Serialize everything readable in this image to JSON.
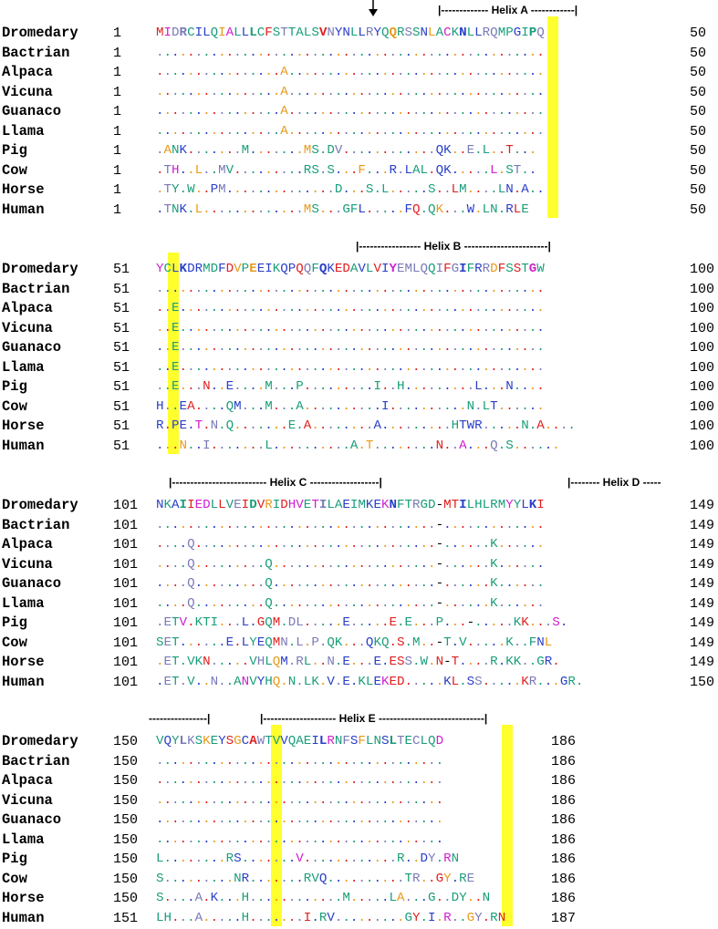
{
  "annotations": {
    "helix_a": "|------------- Helix A ------------|",
    "helix_b": "|----------------- Helix B -----------------------|",
    "helix_c": "|-------------------------- Helix C -------------------|",
    "helix_d": "|-------- Helix D -----",
    "helix_e_pre": "----------------|",
    "helix_e": "|-------------------- Helix E -----------------------------|"
  },
  "species": [
    "Dromedary",
    "Bactrian",
    "Alpaca",
    "Vicuna",
    "Guanaco",
    "Llama",
    "Pig",
    "Cow",
    "Horse",
    "Human"
  ],
  "blocks": [
    {
      "helix_keys": [
        "helix_a"
      ],
      "starts": [
        "1",
        "1",
        "1",
        "1",
        "1",
        "1",
        "1",
        "1",
        "1",
        "1"
      ],
      "ends": [
        "50",
        "50",
        "50",
        "50",
        "50",
        "50",
        "50",
        "50",
        "50",
        "50"
      ],
      "seqs": [
        "MIDRCILQIALLLCFSTTALSVNYNLLRYQQRSSNLACKNLLRQMPGIPQ",
        "..................................................",
        "................A.................................",
        "................A.................................",
        "................A.................................",
        "................A.................................",
        ".ANK.......M.......MS.DV............QK..E.L..T...",
        ".TH..L..MV.........RS.S...F...R.LAL.QK.....L.ST..",
        ".TY.W..PM..............D...S.L.....S..LM....LN.A..",
        ".TNK.L.............MS...GFL.....FQ.QK...W.LN.RLE"
      ]
    },
    {
      "helix_keys": [
        "helix_b"
      ],
      "starts": [
        "51",
        "51",
        "51",
        "51",
        "51",
        "51",
        "51",
        "51",
        "51",
        "51"
      ],
      "ends": [
        "100",
        "100",
        "100",
        "100",
        "100",
        "100",
        "100",
        "100",
        "100",
        "100"
      ],
      "seqs": [
        "YCLKDRMDFDVPEEIKQPQQFQKEDAVLVIYEMLQQIFGIFRRDFSSTGW",
        "..................................................",
        "..E...............................................",
        "..E...............................................",
        "..E...............................................",
        "..E...............................................",
        "..E...N..E....M...P.........I..H.........L...N....",
        "H..EA....QM...M...A..........I..........N.LT......",
        "R.PE.T.N.Q.......E.A........A.........HTWR.....N.A....",
        "...N..I.......L..........A.T........N..A...Q.S......"
      ]
    },
    {
      "helix_keys": [
        "helix_c",
        "helix_d"
      ],
      "starts": [
        "101",
        "101",
        "101",
        "101",
        "101",
        "101",
        "101",
        "101",
        "101",
        "101"
      ],
      "ends": [
        "149",
        "149",
        "149",
        "149",
        "149",
        "149",
        "149",
        "149",
        "149",
        "150"
      ],
      "seqs": [
        "NKAIIEDLLVEIDVRIDHVETILAEIMKEKNFTRGD-MTILHLRMYYLKI",
        "....................................-.............",
        "....Q...............................-......K......",
        "....Q.........Q.....................-......K......",
        "....Q.........Q.....................-......K......",
        "....Q.........Q.....................-......K......",
        ".ETV.KTI...L.GQM.DL.....E.....E.E...P...-.....KK...S.",
        "SET......E.LYEQMN.L.P.QK...QKQ.S.M..-T.V.....K..FNL",
        ".ET.VKN.....VHLQM.RL..N.E...E.ESS.W.N-T....R.KK..GR.",
        ".ET.V..N..ANVYHQ.N.LK.V.E.KLEKED.....KL.SS.....KR...GR."
      ]
    },
    {
      "helix_keys": [
        "helix_e_pre",
        "helix_e"
      ],
      "starts": [
        "150",
        "150",
        "150",
        "150",
        "150",
        "150",
        "150",
        "150",
        "150",
        "151"
      ],
      "ends": [
        "186",
        "186",
        "186",
        "186",
        "186",
        "186",
        "186",
        "186",
        "186",
        "187"
      ],
      "seqs": [
        "VQYLKSKEYSGCAWTVVQAEILRNFSFLNSLTECLQD",
        ".....................................",
        ".....................................",
        ".....................................",
        ".....................................",
        ".....................................",
        "L........RS.......V............R..DY.RN",
        "S.........NR.......RVQ..........TR..GY.RE",
        "S....A.K...H............M.....LA...G..DY..N",
        "LH...A.....H.......I.RV.........GY.I.R..GY.RN"
      ]
    }
  ],
  "colors": {
    "teal": "#1a9e7a",
    "red": "#e02020",
    "blue": "#2a3fc8",
    "purple": "#7a7ab8",
    "orange": "#e89a1a",
    "magenta": "#d01fd0",
    "gray": "#808080",
    "highlight": "#ffff2e"
  }
}
